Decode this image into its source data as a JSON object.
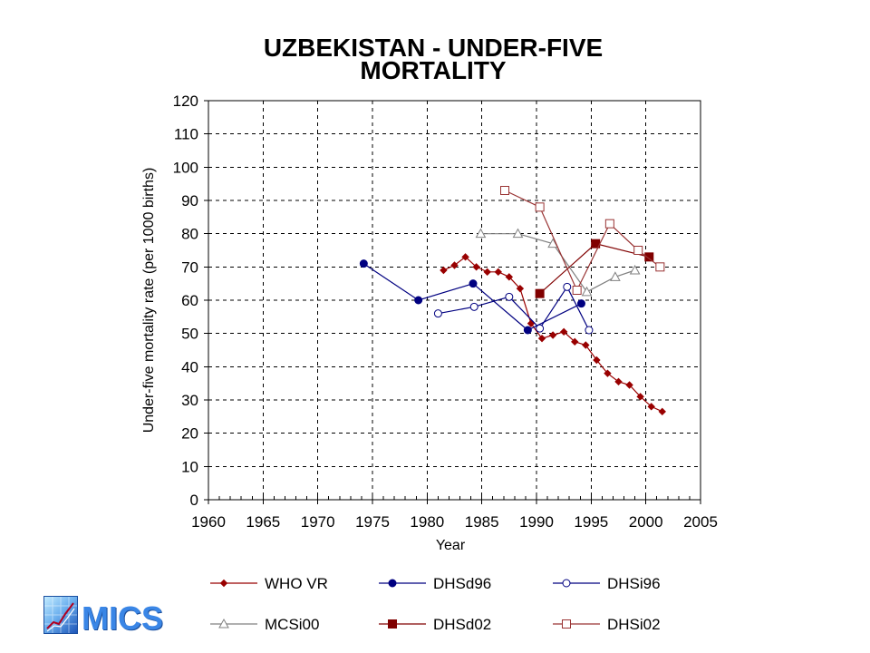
{
  "chart_data": {
    "type": "line",
    "title": "UZBEKISTAN - UNDER-FIVE MORTALITY",
    "xlabel": "Year",
    "ylabel": "Under-five mortality rate (per 1000 births)",
    "xlim": [
      1960,
      2005
    ],
    "ylim": [
      0,
      120
    ],
    "xticks": [
      1960,
      1965,
      1970,
      1975,
      1980,
      1985,
      1990,
      1995,
      2000,
      2005
    ],
    "yticks": [
      0,
      10,
      20,
      30,
      40,
      50,
      60,
      70,
      80,
      90,
      100,
      110,
      120
    ],
    "grid": true,
    "legend": "bottom",
    "series": [
      {
        "name": "WHO VR",
        "color": "#990000",
        "marker": "diamond",
        "filled": true,
        "x": [
          1981.5,
          1982.5,
          1983.5,
          1984.5,
          1985.5,
          1986.5,
          1987.5,
          1988.5,
          1989.5,
          1990.5,
          1991.5,
          1992.5,
          1993.5,
          1994.5,
          1995.5,
          1996.5,
          1997.5,
          1998.5,
          1999.5,
          2000.5,
          2001.5
        ],
        "y": [
          69,
          70.5,
          73,
          70,
          68.5,
          68.5,
          67,
          63.5,
          53,
          48.5,
          49.5,
          50.5,
          47.5,
          46.5,
          42,
          38,
          35.5,
          34.5,
          31,
          28,
          26.5
        ]
      },
      {
        "name": "DHSd96",
        "color": "#000080",
        "marker": "circle",
        "filled": true,
        "x": [
          1974.2,
          1979.2,
          1984.2,
          1989.2,
          1994.1
        ],
        "y": [
          71,
          60,
          65,
          51,
          59
        ]
      },
      {
        "name": "DHSi96",
        "color": "#000080",
        "marker": "circle",
        "filled": false,
        "x": [
          1981,
          1984.3,
          1987.5,
          1990.3,
          1992.8,
          1994.8
        ],
        "y": [
          56,
          58,
          61,
          51.5,
          64,
          51
        ]
      },
      {
        "name": "MCSi00",
        "color": "#808080",
        "marker": "triangle",
        "filled": false,
        "x": [
          1984.9,
          1988.3,
          1991.5,
          1994.6,
          1997.2,
          1999
        ],
        "y": [
          80,
          80,
          77,
          62.5,
          67,
          69
        ]
      },
      {
        "name": "DHSd02",
        "color": "#800000",
        "marker": "square",
        "filled": true,
        "x": [
          1990.3,
          1995.4,
          2000.3
        ],
        "y": [
          62,
          77,
          73
        ]
      },
      {
        "name": "DHSi02",
        "color": "#993333",
        "marker": "square",
        "filled": false,
        "x": [
          1987.1,
          1990.3,
          1993.7,
          1996.7,
          1999.3,
          2001.3
        ],
        "y": [
          93,
          88,
          63,
          83,
          75,
          70
        ]
      }
    ]
  },
  "logo": {
    "text": "MICS"
  }
}
